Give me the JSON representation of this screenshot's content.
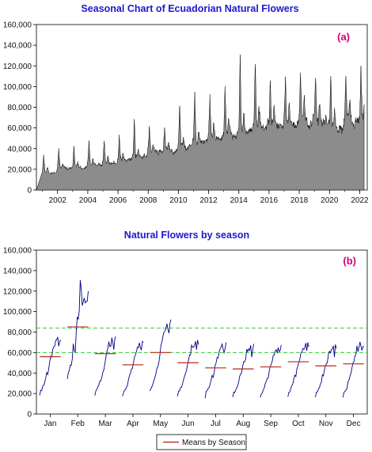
{
  "colors": {
    "title": "#1a1acc",
    "panel_tag": "#d0007a",
    "area_fill": "#8c8c8c",
    "line": "#000088",
    "mean": "#c0392b",
    "guide": "#33cc33"
  },
  "chart_data": [
    {
      "type": "area",
      "title": "Seasonal Chart of Ecuadorian Natural Flowers",
      "panel_label": "(a)",
      "xlabel": "",
      "ylabel": "",
      "xlim": [
        2000.6,
        2022.5
      ],
      "ylim": [
        0,
        160000
      ],
      "x_ticks": [
        2002,
        2004,
        2006,
        2008,
        2010,
        2012,
        2014,
        2016,
        2018,
        2020,
        2022
      ],
      "y_ticks": [
        0,
        20000,
        40000,
        60000,
        80000,
        100000,
        120000,
        140000,
        160000
      ],
      "y_tick_labels": [
        "0",
        "20,000",
        "40,000",
        "60,000",
        "80,000",
        "100,000",
        "120,000",
        "140,000",
        "160,000"
      ],
      "grid": false,
      "yearly_feb_peaks": {
        "x": [
          2001,
          2002,
          2003,
          2004,
          2005,
          2006,
          2007,
          2008,
          2009,
          2010,
          2011,
          2012,
          2013,
          2014,
          2015,
          2016,
          2017,
          2018,
          2019,
          2020,
          2021,
          2022
        ],
        "y": [
          35000,
          42000,
          43000,
          48000,
          50000,
          56000,
          67000,
          61000,
          60000,
          78000,
          91000,
          97000,
          100000,
          139000,
          122000,
          103000,
          116000,
          116000,
          115000,
          105000,
          106000,
          115000
        ]
      },
      "yearly_secondary_may_peaks": {
        "x": [
          2001,
          2002,
          2003,
          2004,
          2005,
          2006,
          2007,
          2008,
          2009,
          2010,
          2011,
          2012,
          2013,
          2014,
          2015,
          2016,
          2017,
          2018,
          2019,
          2020,
          2021,
          2022
        ],
        "y": [
          22000,
          26000,
          27000,
          30000,
          32000,
          37000,
          40000,
          44000,
          46000,
          52000,
          60000,
          66000,
          70000,
          80000,
          84000,
          83000,
          84000,
          87000,
          86000,
          78000,
          88000,
          90000
        ]
      },
      "yearly_troughs": {
        "x": [
          2001,
          2002,
          2003,
          2004,
          2005,
          2006,
          2007,
          2008,
          2009,
          2010,
          2011,
          2012,
          2013,
          2014,
          2015,
          2016,
          2017,
          2018,
          2019,
          2020,
          2021,
          2022
        ],
        "y": [
          15000,
          20000,
          21000,
          23000,
          25000,
          28000,
          31000,
          35000,
          36000,
          40000,
          44000,
          48000,
          50000,
          53000,
          57000,
          58000,
          60000,
          61000,
          61000,
          56000,
          62000,
          63000
        ]
      }
    },
    {
      "type": "line",
      "title": "Natural Flowers by season",
      "panel_label": "(b)",
      "xlabel": "",
      "ylabel": "",
      "categories": [
        "Jan",
        "Feb",
        "Mar",
        "Apr",
        "May",
        "Jun",
        "Jul",
        "Aug",
        "Sep",
        "Oct",
        "Nov",
        "Dec"
      ],
      "ylim": [
        0,
        160000
      ],
      "y_ticks": [
        0,
        20000,
        40000,
        60000,
        80000,
        100000,
        120000,
        140000,
        160000
      ],
      "y_tick_labels": [
        "0",
        "20,000",
        "40,000",
        "60,000",
        "80,000",
        "100,000",
        "120,000",
        "140,000",
        "160,000"
      ],
      "series": [
        {
          "name": "Means by Season",
          "values": [
            56000,
            85000,
            59000,
            48000,
            60000,
            50000,
            45000,
            44000,
            46000,
            51000,
            47000,
            49000
          ]
        }
      ],
      "reference_lines_y": [
        60000,
        84000
      ],
      "legend_position": "bottom-center",
      "grid": false
    }
  ]
}
